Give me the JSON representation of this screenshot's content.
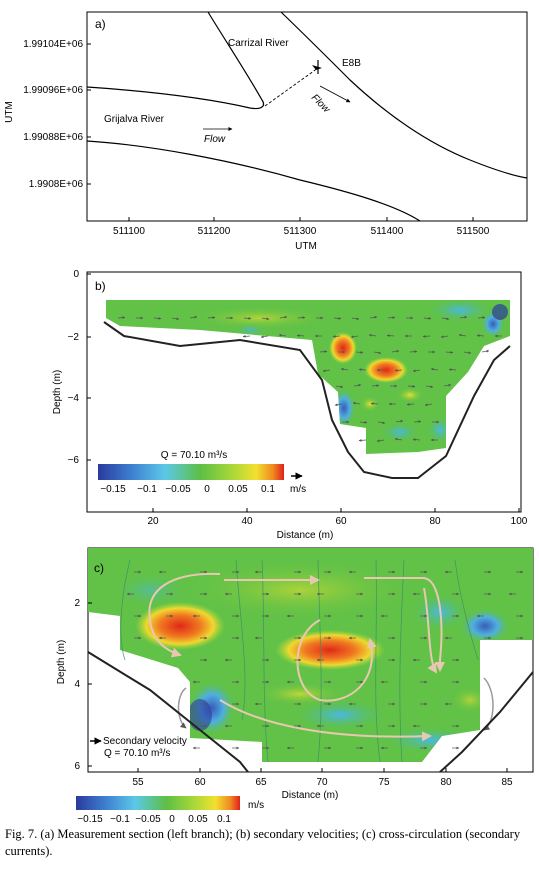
{
  "panel_a": {
    "label": "a)",
    "x_ticks": [
      "511100",
      "511200",
      "511300",
      "511400",
      "511500"
    ],
    "y_ticks": [
      "1.99104E+06",
      "1.99096E+06",
      "1.99088E+06",
      "1.9908E+06"
    ],
    "x_title": "UTM",
    "y_title": "UTM",
    "carrizal_label": "Carrizal River",
    "grijalva_label": "Grijalva River",
    "station_label": "E8B",
    "flow_label_1": "Flow",
    "flow_label_2": "Flow"
  },
  "panel_b": {
    "label": "b)",
    "x_ticks": [
      "20",
      "40",
      "60",
      "80",
      "100"
    ],
    "y_ticks": [
      "0",
      "−2",
      "−4",
      "−6"
    ],
    "x_title": "Distance (m)",
    "y_title": "Depth (m)",
    "discharge": "Q = 70.10 m³/s",
    "colorbar_ticks": [
      "−0.15",
      "−0.1",
      "−0.05",
      "0",
      "0.05",
      "0.1"
    ],
    "colorbar_unit": "m/s"
  },
  "panel_c": {
    "label": "c)",
    "x_ticks": [
      "55",
      "60",
      "65",
      "70",
      "75",
      "80",
      "85"
    ],
    "y_ticks": [
      "2",
      "4",
      "6"
    ],
    "x_title": "Distance (m)",
    "y_title": "Depth (m)",
    "legend_arrow_label": "Secondary velocity",
    "discharge": "Q = 70.10 m³/s",
    "colorbar_ticks": [
      "−0.15",
      "−0.1",
      "−0.05",
      "0",
      "0.05",
      "0.1"
    ],
    "colorbar_unit": "m/s"
  },
  "colors": {
    "negative_strong": "#3344aa",
    "negative": "#4fb8e8",
    "zero": "#5cbf45",
    "positive": "#f2e030",
    "positive_strong": "#e8281c",
    "circulation": "#e8c8b0"
  },
  "caption": "Fig. 7. (a) Measurement section (left branch); (b) secondary velocities; (c) cross-circulation (secondary currents)."
}
